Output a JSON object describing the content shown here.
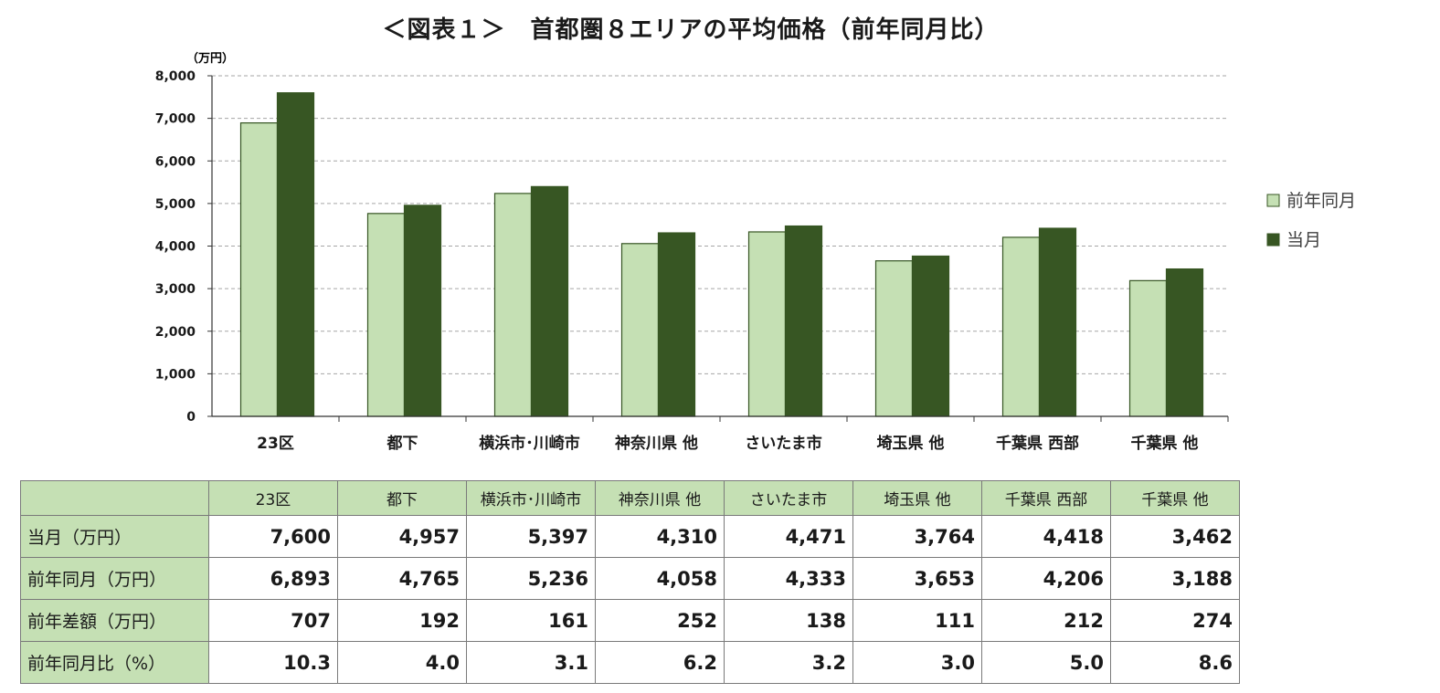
{
  "title": "＜図表１＞　首都圏８エリアの平均価格（前年同月比）",
  "chart_data": {
    "type": "bar",
    "unit_label": "（万円）",
    "categories": [
      "23区",
      "都下",
      "横浜市･川崎市",
      "神奈川県 他",
      "さいたま市",
      "埼玉県 他",
      "千葉県 西部",
      "千葉県 他"
    ],
    "series": [
      {
        "name": "前年同月",
        "values": [
          6893,
          4765,
          5236,
          4058,
          4333,
          3653,
          4206,
          3188
        ],
        "color": "#c5e0b4"
      },
      {
        "name": "当月",
        "values": [
          7600,
          4957,
          5397,
          4310,
          4471,
          3764,
          4418,
          3462
        ],
        "color": "#375623"
      }
    ],
    "ylim": [
      0,
      8000
    ],
    "yticks": [
      0,
      1000,
      2000,
      3000,
      4000,
      5000,
      6000,
      7000,
      8000
    ],
    "ytick_labels": [
      "0",
      "1,000",
      "2,000",
      "3,000",
      "4,000",
      "5,000",
      "6,000",
      "7,000",
      "8,000"
    ],
    "grid": true,
    "legend_position": "right"
  },
  "table": {
    "headers": [
      "23区",
      "都下",
      "横浜市･川崎市",
      "神奈川県 他",
      "さいたま市",
      "埼玉県 他",
      "千葉県 西部",
      "千葉県 他"
    ],
    "rows": [
      {
        "label": "当月（万円）",
        "values": [
          "7,600",
          "4,957",
          "5,397",
          "4,310",
          "4,471",
          "3,764",
          "4,418",
          "3,462"
        ]
      },
      {
        "label": "前年同月（万円）",
        "values": [
          "6,893",
          "4,765",
          "5,236",
          "4,058",
          "4,333",
          "3,653",
          "4,206",
          "3,188"
        ]
      },
      {
        "label": "前年差額（万円）",
        "values": [
          "707",
          "192",
          "161",
          "252",
          "138",
          "111",
          "212",
          "274"
        ]
      },
      {
        "label": "前年同月比（%）",
        "values": [
          "10.3",
          "4.0",
          "3.1",
          "6.2",
          "3.2",
          "3.0",
          "5.0",
          "8.6"
        ]
      }
    ]
  }
}
